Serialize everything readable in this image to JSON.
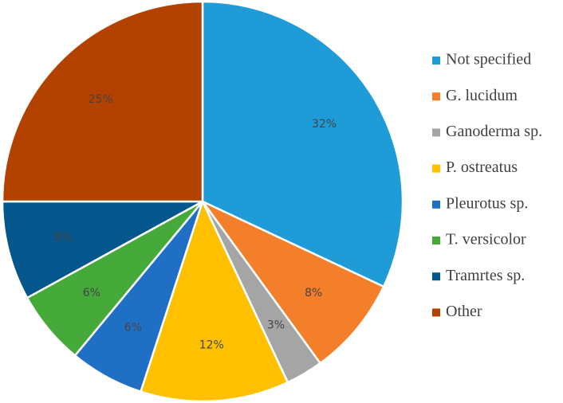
{
  "chart_data": {
    "type": "pie",
    "title": "",
    "legend_position": "right",
    "start_angle_deg": 0,
    "direction": "clockwise",
    "slices": [
      {
        "label": "Not specified",
        "value": 32,
        "display": "32%",
        "color": "#1F9BD7"
      },
      {
        "label": "G. lucidum",
        "value": 8,
        "display": "8%",
        "color": "#F47F2A"
      },
      {
        "label": "Ganoderma sp.",
        "value": 3,
        "display": "3%",
        "color": "#A5A5A5"
      },
      {
        "label": "P. ostreatus",
        "value": 12,
        "display": "12%",
        "color": "#FFC000"
      },
      {
        "label": "Pleurotus sp.",
        "value": 6,
        "display": "6%",
        "color": "#1F6FC5"
      },
      {
        "label": "T. versicolor",
        "value": 6,
        "display": "6%",
        "color": "#46AA3A"
      },
      {
        "label": "Tramrtes sp.",
        "value": 8,
        "display": "8%",
        "color": "#03578D"
      },
      {
        "label": "Other",
        "value": 25,
        "display": "25%",
        "color": "#B34100"
      }
    ]
  }
}
